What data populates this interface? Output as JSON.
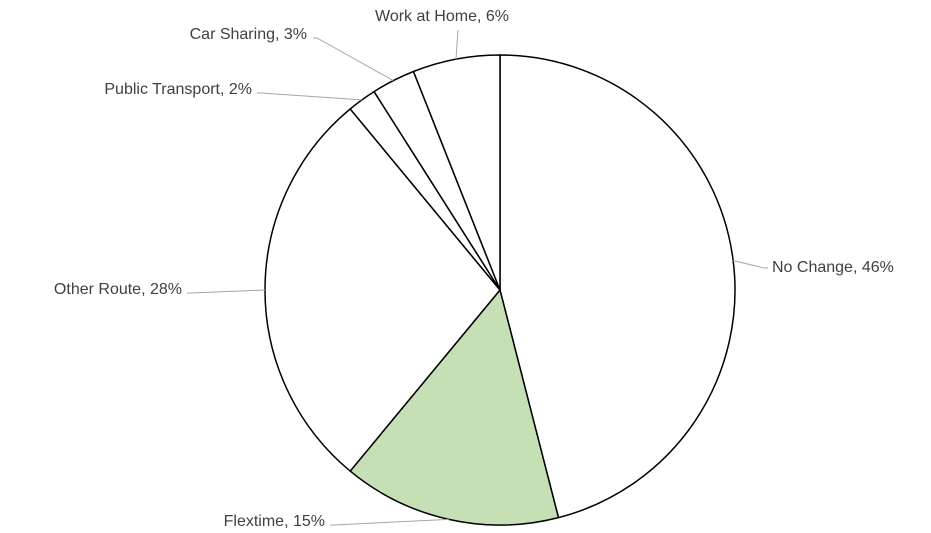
{
  "chart_data": {
    "type": "pie",
    "values": [
      46,
      15,
      28,
      2,
      3,
      6
    ],
    "value_labels": [
      "No Change, 46%",
      "Flextime, 15%",
      "Other Route, 28%",
      "Public Transport, 2%",
      "Car Sharing, 3%",
      "Work at Home, 6%"
    ],
    "colors": [
      "#ffffff",
      "#c5e0b4",
      "#ffffff",
      "#ffffff",
      "#ffffff",
      "#ffffff"
    ]
  }
}
